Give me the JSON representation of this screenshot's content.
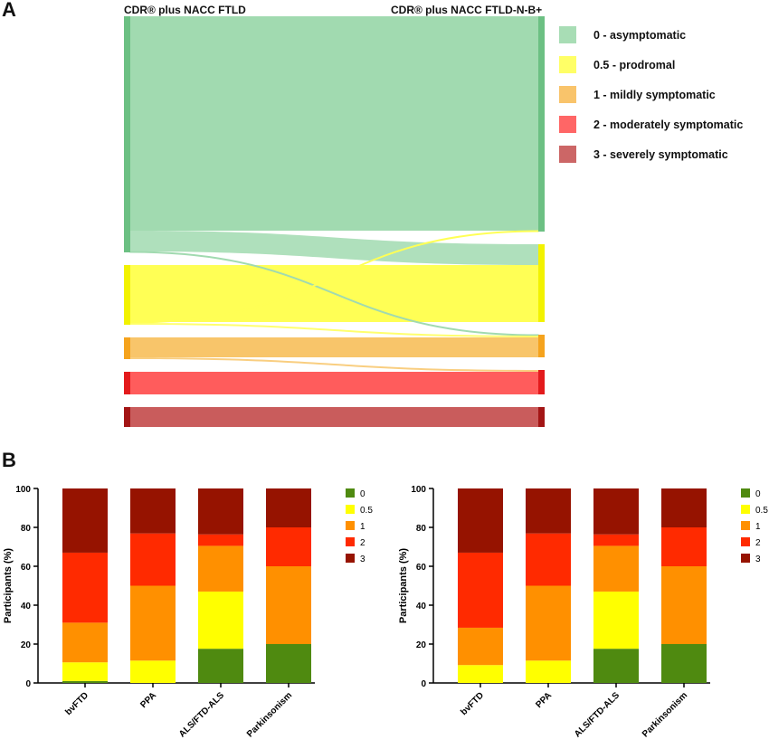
{
  "panel_a": {
    "letter": "A",
    "left_title": "CDR® plus NACC FTLD",
    "right_title": "CDR® plus NACC FTLD-N-B+",
    "legend": [
      {
        "label": "0 - asymptomatic",
        "color": "#a8ddb5"
      },
      {
        "label": "0.5 - prodromal",
        "color": "#ffff66"
      },
      {
        "label": "1 - mildly symptomatic",
        "color": "#f9c46b"
      },
      {
        "label": "2 - moderately symptomatic",
        "color": "#ff6666"
      },
      {
        "label": "3 - severely symptomatic",
        "color": "#cc6666"
      }
    ]
  },
  "panel_b": {
    "letter": "B"
  },
  "chart_data": [
    {
      "type": "sankey",
      "title": "",
      "left_axis": "CDR® plus NACC FTLD",
      "right_axis": "CDR® plus NACC FTLD-N-B+",
      "nodes": [
        "0",
        "0.5",
        "1",
        "2",
        "3"
      ],
      "node_colors": [
        "#6cc083",
        "#f2f200",
        "#f5a31d",
        "#e31a1c",
        "#a31515"
      ],
      "flow_colors": [
        "#a1dab0",
        "#ffff55",
        "#f8c56a",
        "#ff5c5c",
        "#c95c5c"
      ],
      "flows": [
        {
          "from": "0",
          "to": "0",
          "value": 237
        },
        {
          "from": "0",
          "to": "0.5",
          "value": 23
        },
        {
          "from": "0",
          "to": "1",
          "value": 1
        },
        {
          "from": "0.5",
          "to": "0.5",
          "value": 63
        },
        {
          "from": "0.5",
          "to": "0",
          "value": 1
        },
        {
          "from": "0.5",
          "to": "1",
          "value": 2
        },
        {
          "from": "1",
          "to": "1",
          "value": 22
        },
        {
          "from": "1",
          "to": "2",
          "value": 2
        },
        {
          "from": "2",
          "to": "2",
          "value": 25
        },
        {
          "from": "3",
          "to": "3",
          "value": 22
        }
      ]
    },
    {
      "type": "bar",
      "stacked": true,
      "title": "",
      "xlabel": "",
      "ylabel": "Participants (%)",
      "ylim": [
        0,
        100
      ],
      "yticks": [
        0,
        20,
        40,
        60,
        80,
        100
      ],
      "categories": [
        "bvFTD",
        "PPA",
        "ALS/FTD-ALS",
        "Parkinsonism"
      ],
      "series": [
        {
          "name": "0",
          "color": "#4f8a10",
          "values": [
            1,
            0,
            17.6,
            20
          ]
        },
        {
          "name": "0.5",
          "color": "#ffff00",
          "values": [
            9.6,
            11.5,
            29.4,
            0
          ]
        },
        {
          "name": "1",
          "color": "#ff9000",
          "values": [
            20.4,
            38.5,
            23.5,
            40
          ]
        },
        {
          "name": "2",
          "color": "#ff2a00",
          "values": [
            36,
            26.9,
            5.9,
            20
          ]
        },
        {
          "name": "3",
          "color": "#961300",
          "values": [
            33,
            23.1,
            23.6,
            20
          ]
        }
      ],
      "legend_position": "right"
    },
    {
      "type": "bar",
      "stacked": true,
      "title": "",
      "xlabel": "",
      "ylabel": "Participants (%)",
      "ylim": [
        0,
        100
      ],
      "yticks": [
        0,
        20,
        40,
        60,
        80,
        100
      ],
      "categories": [
        "bvFTD",
        "PPA",
        "ALS/FTD-ALS",
        "Parkinsonism"
      ],
      "series": [
        {
          "name": "0",
          "color": "#4f8a10",
          "values": [
            0,
            0,
            17.6,
            20
          ]
        },
        {
          "name": "0.5",
          "color": "#ffff00",
          "values": [
            9.2,
            11.5,
            29.4,
            0
          ]
        },
        {
          "name": "1",
          "color": "#ff9000",
          "values": [
            19.2,
            38.5,
            23.5,
            40
          ]
        },
        {
          "name": "2",
          "color": "#ff2a00",
          "values": [
            38.6,
            26.9,
            5.9,
            20
          ]
        },
        {
          "name": "3",
          "color": "#961300",
          "values": [
            33,
            23.1,
            23.6,
            20
          ]
        }
      ],
      "legend_position": "right"
    }
  ]
}
